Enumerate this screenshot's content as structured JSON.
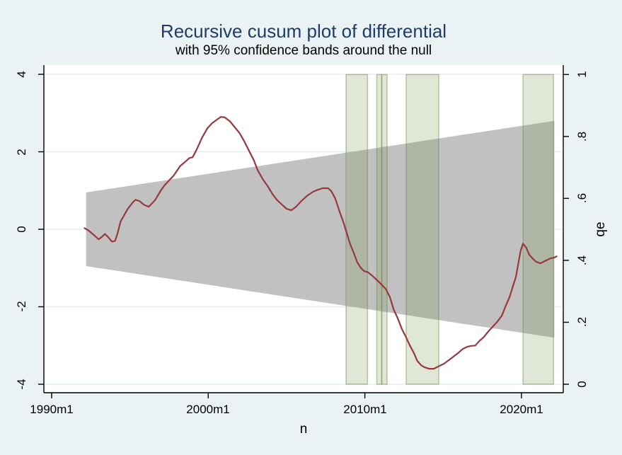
{
  "title": "Recursive cusum plot of differential",
  "subtitle": "with 95% confidence bands around the null",
  "colors": {
    "background": "#EAF2F3",
    "plot_background": "#FFFFFF",
    "grid": "#E3EDF0",
    "axis": "#000000",
    "title": "#1E3C69",
    "text": "#000000",
    "confidence_band": "#C1C1C1",
    "cusum_line": "#96393E",
    "qe_fill": "rgba(120,145,75,0.22)",
    "qe_border": "rgba(110,135,70,0.45)"
  },
  "chart_data": {
    "type": "line",
    "title": "Recursive cusum plot of differential",
    "subtitle": "with 95% confidence bands around the null",
    "grid": "horizontal-only",
    "legend": "none",
    "x_axis": {
      "label": "n",
      "tick_labels": [
        "1990m1",
        "2000m1",
        "2010m1",
        "2020m1"
      ],
      "tick_values": [
        1990,
        2000,
        2010,
        2020
      ],
      "range": [
        1989.5,
        2022.67
      ]
    },
    "y_axis_left": {
      "label": "",
      "tick_labels": [
        "4",
        "2",
        "0",
        "-2",
        "-4"
      ],
      "tick_values": [
        4,
        2,
        0,
        -2,
        -4
      ],
      "range": [
        -4.22,
        4.22
      ]
    },
    "y_axis_right": {
      "label": "qe",
      "tick_labels": [
        "1",
        ".8",
        ".6",
        ".4",
        ".2",
        "0"
      ],
      "tick_values": [
        1,
        0.8,
        0.6,
        0.4,
        0.2,
        0
      ],
      "range": [
        -0.027,
        1.027
      ]
    },
    "confidence_band": {
      "description": "95% confidence band around the null, widening linearly",
      "x": [
        1992.2,
        2022.1
      ],
      "upper": [
        0.95,
        2.8
      ],
      "lower": [
        -0.95,
        -2.8
      ]
    },
    "qe_periods": [
      [
        2008.8,
        2010.17
      ],
      [
        2010.76,
        2011.08
      ],
      [
        2011.08,
        2011.42
      ],
      [
        2012.64,
        2014.72
      ],
      [
        2020.1,
        2022.05
      ]
    ],
    "cusum_series": [
      [
        1992.1,
        0.03
      ],
      [
        1992.35,
        -0.03
      ],
      [
        1992.7,
        -0.15
      ],
      [
        1993.0,
        -0.26
      ],
      [
        1993.2,
        -0.2
      ],
      [
        1993.4,
        -0.12
      ],
      [
        1993.6,
        -0.2
      ],
      [
        1993.85,
        -0.32
      ],
      [
        1994.05,
        -0.3
      ],
      [
        1994.2,
        -0.12
      ],
      [
        1994.4,
        0.2
      ],
      [
        1994.85,
        0.52
      ],
      [
        1995.15,
        0.68
      ],
      [
        1995.35,
        0.76
      ],
      [
        1995.6,
        0.73
      ],
      [
        1995.9,
        0.63
      ],
      [
        1996.2,
        0.58
      ],
      [
        1996.6,
        0.75
      ],
      [
        1997.0,
        1.02
      ],
      [
        1997.2,
        1.13
      ],
      [
        1997.8,
        1.39
      ],
      [
        1998.2,
        1.63
      ],
      [
        1998.55,
        1.75
      ],
      [
        1998.8,
        1.84
      ],
      [
        1999.0,
        1.86
      ],
      [
        1999.25,
        2.05
      ],
      [
        1999.6,
        2.36
      ],
      [
        1999.95,
        2.61
      ],
      [
        2000.25,
        2.74
      ],
      [
        2000.55,
        2.83
      ],
      [
        2000.8,
        2.9
      ],
      [
        2001.05,
        2.89
      ],
      [
        2001.4,
        2.78
      ],
      [
        2001.7,
        2.63
      ],
      [
        2002.0,
        2.48
      ],
      [
        2002.3,
        2.27
      ],
      [
        2002.6,
        2.03
      ],
      [
        2002.9,
        1.79
      ],
      [
        2003.15,
        1.53
      ],
      [
        2003.5,
        1.28
      ],
      [
        2003.8,
        1.11
      ],
      [
        2004.1,
        0.91
      ],
      [
        2004.4,
        0.75
      ],
      [
        2004.7,
        0.64
      ],
      [
        2005.0,
        0.53
      ],
      [
        2005.3,
        0.49
      ],
      [
        2005.6,
        0.58
      ],
      [
        2005.95,
        0.73
      ],
      [
        2006.3,
        0.86
      ],
      [
        2006.7,
        0.97
      ],
      [
        2007.0,
        1.02
      ],
      [
        2007.3,
        1.06
      ],
      [
        2007.65,
        1.06
      ],
      [
        2007.85,
        0.99
      ],
      [
        2008.1,
        0.8
      ],
      [
        2008.4,
        0.44
      ],
      [
        2008.65,
        0.16
      ],
      [
        2008.85,
        -0.11
      ],
      [
        2009.05,
        -0.37
      ],
      [
        2009.3,
        -0.62
      ],
      [
        2009.5,
        -0.84
      ],
      [
        2009.75,
        -1.0
      ],
      [
        2009.95,
        -1.08
      ],
      [
        2010.2,
        -1.11
      ],
      [
        2010.45,
        -1.19
      ],
      [
        2010.8,
        -1.32
      ],
      [
        2011.1,
        -1.44
      ],
      [
        2011.35,
        -1.55
      ],
      [
        2011.6,
        -1.75
      ],
      [
        2011.85,
        -2.08
      ],
      [
        2012.1,
        -2.3
      ],
      [
        2012.35,
        -2.56
      ],
      [
        2012.6,
        -2.76
      ],
      [
        2012.85,
        -2.98
      ],
      [
        2013.15,
        -3.21
      ],
      [
        2013.35,
        -3.4
      ],
      [
        2013.6,
        -3.51
      ],
      [
        2013.8,
        -3.56
      ],
      [
        2014.1,
        -3.6
      ],
      [
        2014.4,
        -3.6
      ],
      [
        2014.7,
        -3.54
      ],
      [
        2015.05,
        -3.47
      ],
      [
        2015.35,
        -3.38
      ],
      [
        2015.65,
        -3.29
      ],
      [
        2016.0,
        -3.18
      ],
      [
        2016.25,
        -3.09
      ],
      [
        2016.55,
        -3.03
      ],
      [
        2016.8,
        -3.01
      ],
      [
        2017.05,
        -3.0
      ],
      [
        2017.3,
        -2.89
      ],
      [
        2017.6,
        -2.78
      ],
      [
        2017.9,
        -2.63
      ],
      [
        2018.2,
        -2.5
      ],
      [
        2018.45,
        -2.39
      ],
      [
        2018.75,
        -2.23
      ],
      [
        2019.0,
        -1.97
      ],
      [
        2019.25,
        -1.74
      ],
      [
        2019.45,
        -1.48
      ],
      [
        2019.65,
        -1.22
      ],
      [
        2019.8,
        -0.88
      ],
      [
        2019.95,
        -0.55
      ],
      [
        2020.1,
        -0.37
      ],
      [
        2020.3,
        -0.47
      ],
      [
        2020.5,
        -0.66
      ],
      [
        2020.75,
        -0.77
      ],
      [
        2020.95,
        -0.84
      ],
      [
        2021.2,
        -0.88
      ],
      [
        2021.4,
        -0.84
      ],
      [
        2021.65,
        -0.79
      ],
      [
        2021.85,
        -0.75
      ],
      [
        2022.1,
        -0.73
      ],
      [
        2022.25,
        -0.7
      ]
    ]
  }
}
